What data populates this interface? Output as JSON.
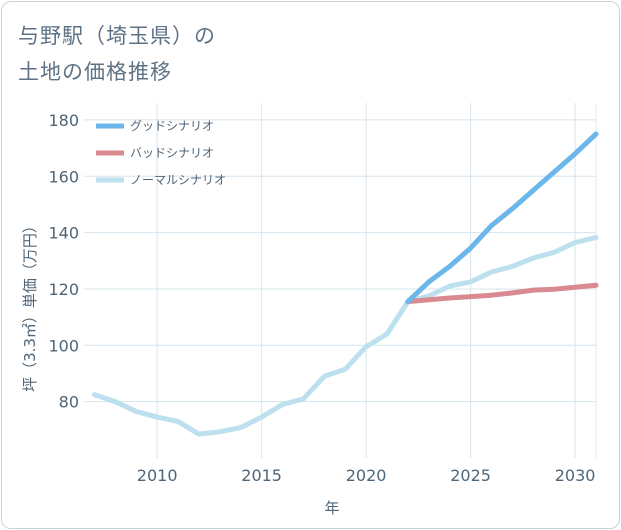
{
  "chart_data": {
    "type": "line",
    "title_line1": "与野駅（埼玉県）の",
    "title_line2": "土地の価格推移",
    "xlabel": "年",
    "ylabel": "坪（3.3㎡）単価（万円）",
    "xlim": [
      2006.5,
      2031
    ],
    "ylim": [
      60,
      186
    ],
    "xticks": [
      2010,
      2015,
      2020,
      2025,
      2030
    ],
    "yticks": [
      80,
      100,
      120,
      140,
      160,
      180
    ],
    "series": [
      {
        "name": "グッドシナリオ",
        "color": "#6bb6ea",
        "x": [
          2022,
          2023,
          2024,
          2025,
          2026,
          2027,
          2028,
          2029,
          2030,
          2031
        ],
        "values": [
          115.5,
          122.5,
          128,
          134.5,
          142.5,
          148.5,
          155,
          161.5,
          168,
          175
        ]
      },
      {
        "name": "バッドシナリオ",
        "color": "#d98a91",
        "x": [
          2022,
          2023,
          2024,
          2025,
          2026,
          2027,
          2028,
          2029,
          2030,
          2031
        ],
        "values": [
          115.5,
          116.2,
          116.8,
          117.3,
          117.8,
          118.6,
          119.6,
          119.9,
          120.6,
          121.3
        ]
      },
      {
        "name": "ノーマルシナリオ",
        "color": "#bde0ef",
        "x": [
          2007,
          2008,
          2009,
          2010,
          2011,
          2012,
          2013,
          2014,
          2015,
          2016,
          2017,
          2018,
          2019,
          2020,
          2021,
          2022,
          2023,
          2024,
          2025,
          2026,
          2027,
          2028,
          2029,
          2030,
          2031
        ],
        "values": [
          82.5,
          80,
          76.5,
          74.5,
          73,
          68.5,
          69.3,
          70.8,
          74.5,
          79,
          81,
          89,
          91.5,
          99.5,
          104,
          115.5,
          117.5,
          121,
          122.5,
          126,
          128,
          131,
          133,
          136.5,
          138.3
        ]
      }
    ]
  }
}
